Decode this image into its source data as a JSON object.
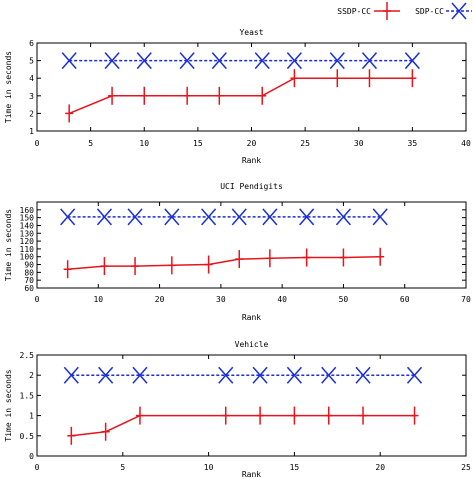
{
  "legend": [
    {
      "name": "SSDP-CC",
      "color": "#e8141c",
      "marker": "plus",
      "line": "solid"
    },
    {
      "name": "SDP-CC",
      "color": "#1a2fd6",
      "marker": "x",
      "line": "dashed"
    }
  ],
  "chart_data": [
    {
      "type": "line",
      "title": "Yeast",
      "xlabel": "Rank",
      "ylabel": "Time in seconds",
      "xlim": [
        0,
        40
      ],
      "ylim": [
        1,
        6
      ],
      "xticks": [
        "0",
        "5",
        "10",
        "15",
        "20",
        "25",
        "30",
        "35",
        "40"
      ],
      "yticks": [
        "1",
        "2",
        "3",
        "4",
        "5",
        "6"
      ],
      "grid": false,
      "series": [
        {
          "name": "SSDP-CC",
          "x": [
            3,
            7,
            10,
            14,
            17,
            21,
            24,
            28,
            31,
            35
          ],
          "y": [
            2,
            3,
            3,
            3,
            3,
            3,
            4,
            4,
            4,
            4
          ]
        },
        {
          "name": "SDP-CC",
          "x": [
            3,
            7,
            10,
            14,
            17,
            21,
            24,
            28,
            31,
            35
          ],
          "y": [
            5,
            5,
            5,
            5,
            5,
            5,
            5,
            5,
            5,
            5
          ]
        }
      ]
    },
    {
      "type": "line",
      "title": "UCI Pendigits",
      "xlabel": "Rank",
      "ylabel": "Time in seconds",
      "xlim": [
        0,
        70
      ],
      "ylim": [
        60,
        170
      ],
      "xticks": [
        "0",
        "10",
        "20",
        "30",
        "40",
        "50",
        "60",
        "70"
      ],
      "yticks": [
        "60",
        "70",
        "80",
        "90",
        "100",
        "110",
        "120",
        "130",
        "140",
        "150",
        "160"
      ],
      "grid": false,
      "series": [
        {
          "name": "SSDP-CC",
          "x": [
            5,
            11,
            16,
            22,
            28,
            33,
            38,
            44,
            50,
            56
          ],
          "y": [
            84,
            88,
            88,
            89,
            90,
            97,
            98,
            99,
            99,
            100
          ]
        },
        {
          "name": "SDP-CC",
          "x": [
            5,
            11,
            16,
            22,
            28,
            33,
            38,
            44,
            50,
            56
          ],
          "y": [
            151,
            151,
            151,
            151,
            151,
            151,
            151,
            151,
            151,
            151
          ]
        }
      ]
    },
    {
      "type": "line",
      "title": "Vehicle",
      "xlabel": "Rank",
      "ylabel": "Time in seconds",
      "xlim": [
        0,
        25
      ],
      "ylim": [
        0,
        2.5
      ],
      "xticks": [
        "0",
        "5",
        "10",
        "15",
        "20",
        "25"
      ],
      "yticks": [
        "0",
        "0.5",
        "1",
        "1.5",
        "2",
        "2.5"
      ],
      "grid": false,
      "series": [
        {
          "name": "SSDP-CC",
          "x": [
            2,
            4,
            6,
            11,
            13,
            15,
            17,
            19,
            22
          ],
          "y": [
            0.5,
            0.6,
            1,
            1,
            1,
            1,
            1,
            1,
            1
          ]
        },
        {
          "name": "SDP-CC",
          "x": [
            2,
            4,
            6,
            11,
            13,
            15,
            17,
            19,
            22
          ],
          "y": [
            2,
            2,
            2,
            2,
            2,
            2,
            2,
            2,
            2
          ]
        }
      ]
    }
  ]
}
